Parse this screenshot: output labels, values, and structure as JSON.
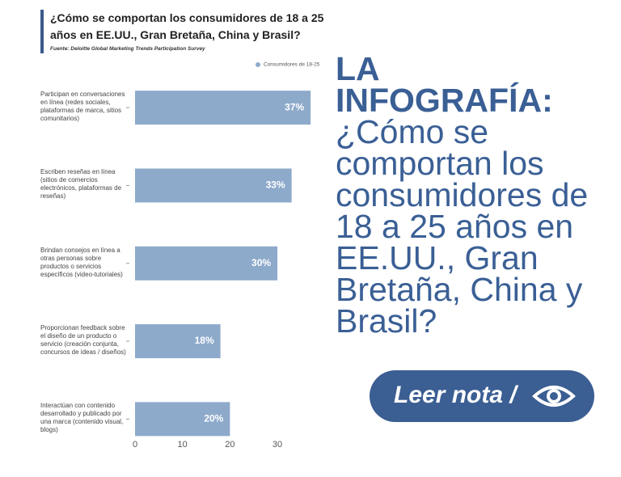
{
  "chart_data": {
    "type": "bar",
    "orientation": "horizontal",
    "title": "¿Cómo se comportan los consumidores de 18 a 25 años en EE.UU., Gran Bretaña, China y Brasil?",
    "source": "Fuente: Deloitte Global Marketing Trends Participation Survey",
    "categories": [
      "Participan en conversaciones en línea (redes sociales, plataformas de marca, sitios comunitarios)",
      "Escriben reseñas en línea (sitios de comercios electrónicos, plataformas de reseñas)",
      "Brindan consejos en línea a otras personas sobre productos o servicios específicos (video-tutoriales)",
      "Proporcionan feedback sobre el diseño de un producto o servicio (creación conjunta, concursos de ideas / diseños)",
      "Interactúan con contenido desarrollado y publicado por una marca (contenido visual, blogs)"
    ],
    "series": [
      {
        "name": "Consumidores de 18-25",
        "color": "#8eaacb",
        "values": [
          37,
          33,
          30,
          18,
          20
        ],
        "value_labels": [
          "37%",
          "33%",
          "30%",
          "18%",
          "20%"
        ]
      }
    ],
    "xlim": [
      0,
      38
    ],
    "xticks": [
      0,
      10,
      20,
      30
    ],
    "grid": false,
    "legend": "top-right"
  },
  "headline": {
    "label": "LA INFOGRAFÍA:",
    "text": "¿Cómo se comportan los consumidores de 18 a 25 años en EE.UU., Gran Bretaña, China y Brasil?"
  },
  "button": {
    "label": "Leer nota /"
  }
}
